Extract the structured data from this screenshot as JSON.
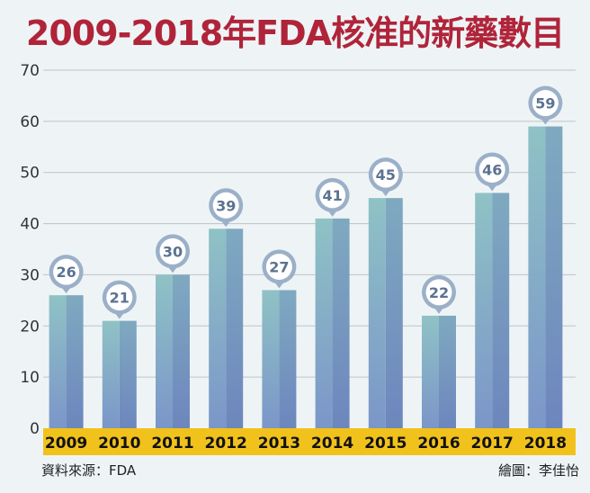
{
  "title": "2009-2018年FDA核准的新藥數目",
  "source": "資料來源：FDA",
  "credit": "繪圖：李佳怡",
  "colors": {
    "title": "#b0243a",
    "bar_light": "#8fc2c5",
    "bar_dark": "#7898c8",
    "axis_band": "#f1c21b",
    "bubble_ring": "#9bb0c8",
    "label_text": "#5c7290"
  },
  "chart_data": {
    "type": "bar",
    "title": "2009-2018年FDA核准的新藥數目",
    "categories": [
      "2009",
      "2010",
      "2011",
      "2012",
      "2013",
      "2014",
      "2015",
      "2016",
      "2017",
      "2018"
    ],
    "values": [
      26,
      21,
      30,
      39,
      27,
      41,
      45,
      22,
      46,
      59
    ],
    "data_labels": [
      "26",
      "21",
      "30",
      "39",
      "27",
      "41",
      "45",
      "22",
      "46",
      "59"
    ],
    "y_ticks": [
      "0",
      "10",
      "20",
      "30",
      "40",
      "50",
      "60",
      "70"
    ],
    "ylim": [
      0,
      70
    ],
    "grid": true,
    "xlabel": "",
    "ylabel": ""
  }
}
